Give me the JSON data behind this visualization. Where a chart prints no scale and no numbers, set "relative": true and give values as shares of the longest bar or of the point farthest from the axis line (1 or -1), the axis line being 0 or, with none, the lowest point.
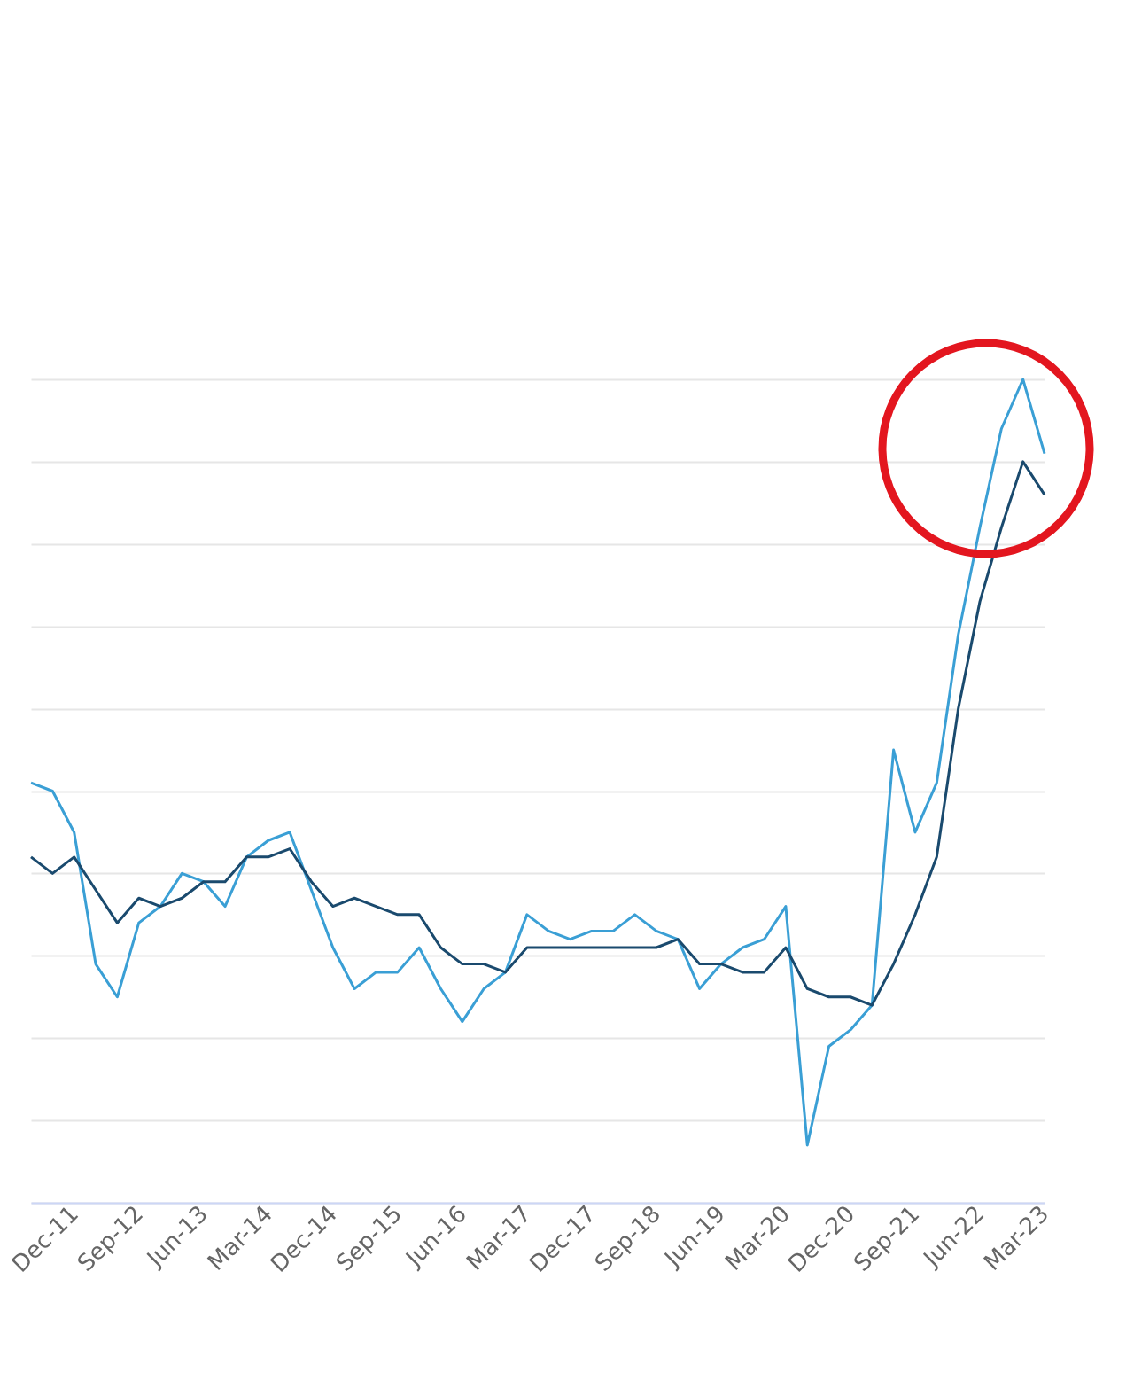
{
  "chart_data": {
    "type": "line",
    "relative": true,
    "grid": "y",
    "legend": false,
    "marker": "none",
    "line_style": "solid",
    "categories": [
      null,
      null,
      "Dec-11",
      null,
      null,
      "Sep-12",
      null,
      null,
      "Jun-13",
      null,
      null,
      "Mar-14",
      null,
      null,
      "Dec-14",
      null,
      null,
      "Sep-15",
      null,
      null,
      "Jun-16",
      null,
      null,
      "Mar-17",
      null,
      null,
      "Dec-17",
      null,
      null,
      "Sep-18",
      null,
      null,
      "Jun-19",
      null,
      null,
      "Mar-20",
      null,
      null,
      "Dec-20",
      null,
      null,
      "Sep-21",
      null,
      null,
      "Jun-22",
      null,
      null,
      "Mar-23"
    ],
    "series": [
      {
        "color": "#3a9fd5",
        "values": [
          0.51,
          0.5,
          0.45,
          0.29,
          0.25,
          0.34,
          0.36,
          0.4,
          0.39,
          0.36,
          0.42,
          0.44,
          0.45,
          0.38,
          0.31,
          0.26,
          0.28,
          0.28,
          0.31,
          0.26,
          0.22,
          0.26,
          0.28,
          0.35,
          0.33,
          0.32,
          0.33,
          0.33,
          0.35,
          0.33,
          0.32,
          0.26,
          0.29,
          0.31,
          0.32,
          0.36,
          0.07,
          0.19,
          0.21,
          0.24,
          0.55,
          0.45,
          0.51,
          0.69,
          0.82,
          0.94,
          1.0,
          0.91
        ]
      },
      {
        "color": "#1a4a6e",
        "values": [
          0.42,
          0.4,
          0.42,
          0.38,
          0.34,
          0.37,
          0.36,
          0.37,
          0.39,
          0.39,
          0.42,
          0.42,
          0.43,
          0.39,
          0.36,
          0.37,
          0.36,
          0.35,
          0.35,
          0.31,
          0.29,
          0.29,
          0.28,
          0.31,
          0.31,
          0.31,
          0.31,
          0.31,
          0.31,
          0.31,
          0.32,
          0.29,
          0.29,
          0.28,
          0.28,
          0.31,
          0.26,
          0.25,
          0.25,
          0.24,
          0.29,
          0.35,
          0.42,
          0.6,
          0.73,
          0.82,
          0.9,
          0.86
        ]
      }
    ]
  }
}
